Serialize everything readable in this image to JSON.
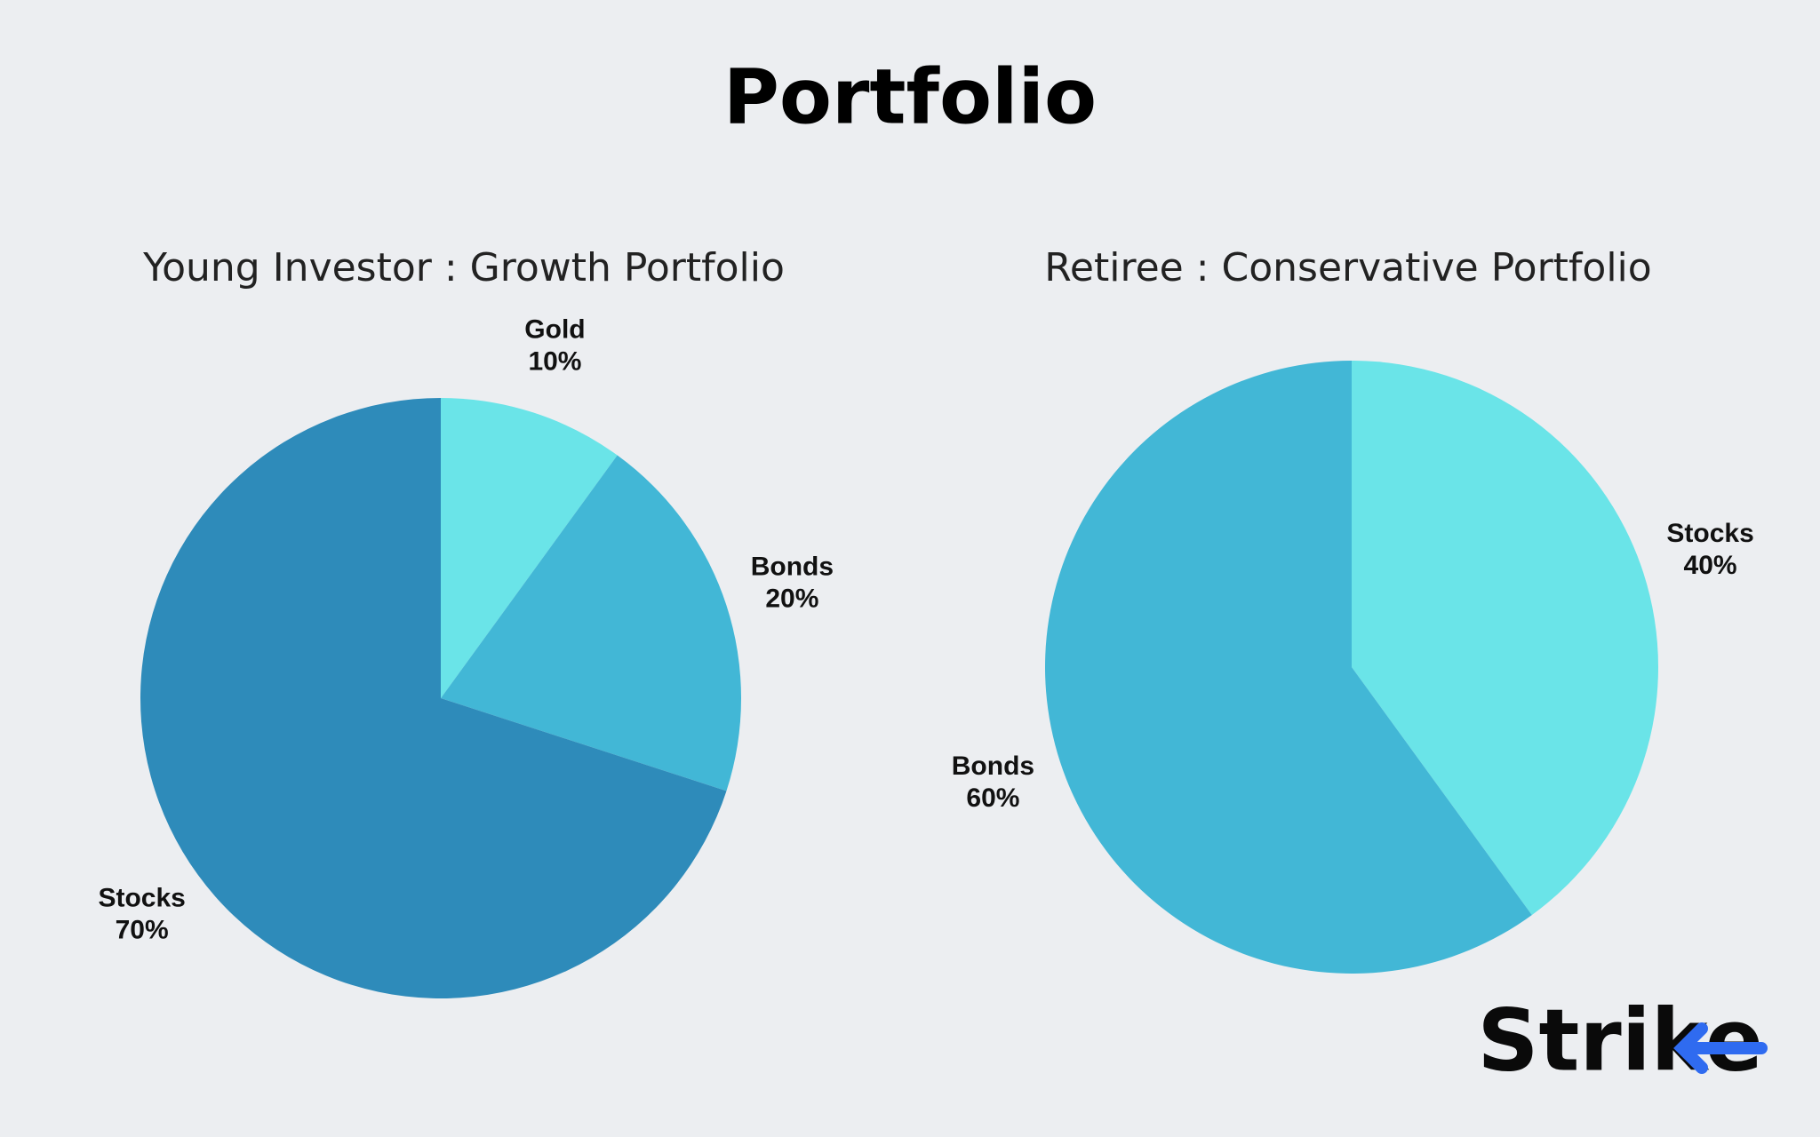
{
  "title": "Portfolio",
  "brand": "Strike",
  "chart_data": [
    {
      "type": "pie",
      "title": "Young Investor : Growth Portfolio",
      "categories": [
        "Gold",
        "Bonds",
        "Stocks"
      ],
      "values": [
        10,
        20,
        70
      ],
      "value_labels": [
        "10%",
        "20%",
        "70%"
      ],
      "colors": [
        "#6ae4e8",
        "#42b7d6",
        "#2e8bba"
      ]
    },
    {
      "type": "pie",
      "title": "Retiree : Conservative Portfolio",
      "categories": [
        "Stocks",
        "Bonds"
      ],
      "values": [
        40,
        60
      ],
      "value_labels": [
        "40%",
        "60%"
      ],
      "colors": [
        "#6ae4e8",
        "#42b7d6"
      ]
    }
  ]
}
